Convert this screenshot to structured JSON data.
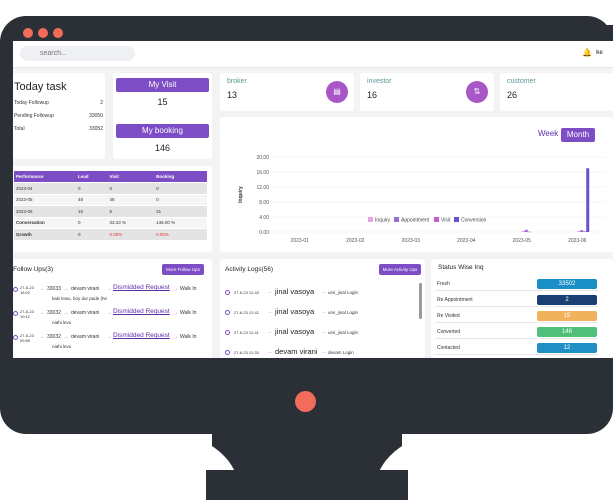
{
  "search": {
    "placeholder": "search..."
  },
  "header": {
    "user": "ke"
  },
  "today_task": {
    "title": "Today task",
    "rows": [
      {
        "label": "Today Followup",
        "value": "2"
      },
      {
        "label": "Pending Followup",
        "value": "33050"
      },
      {
        "label": "Total",
        "value": "33052"
      }
    ]
  },
  "my_visit": {
    "label": "My Visit",
    "value": "15"
  },
  "my_booking": {
    "label": "My booking",
    "value": "146"
  },
  "stats": [
    {
      "label": "broker",
      "value": "13",
      "icon": "chart-icon"
    },
    {
      "label": "investor",
      "value": "16",
      "icon": "arrows-icon"
    },
    {
      "label": "customer",
      "value": "26",
      "icon": "user-icon"
    }
  ],
  "performance": {
    "headers": [
      "Performance",
      "Lead",
      "Visit",
      "Booking"
    ],
    "rows": [
      [
        "2023-04",
        "0",
        "0",
        "0"
      ],
      [
        "2023-05",
        "48",
        "48",
        "0"
      ],
      [
        "2023-06",
        "15",
        "5",
        "31"
      ],
      [
        "Conversation",
        "0",
        "33.33 %",
        "146.00 %"
      ],
      [
        "Growth",
        "0",
        "0.00%",
        "0.00%"
      ]
    ]
  },
  "chart_toggle": {
    "week": "Week",
    "month": "Month"
  },
  "chart_data": {
    "type": "bar",
    "categories": [
      "2023-01",
      "2023-02",
      "2023-03",
      "2023-04",
      "2023-05",
      "2023-06"
    ],
    "series": [
      {
        "name": "Inquiry",
        "color": "#e3a2e3",
        "values": [
          0,
          0,
          0,
          0,
          0.3,
          0.3
        ]
      },
      {
        "name": "Appointment",
        "color": "#9b6bd6",
        "values": [
          0,
          0,
          0,
          0,
          0.6,
          0.5
        ]
      },
      {
        "name": "Visit",
        "color": "#c95ad0",
        "values": [
          0,
          0,
          0,
          0,
          0.1,
          0.2
        ]
      },
      {
        "name": "Conversion",
        "color": "#6a4fd0",
        "values": [
          0,
          0,
          0,
          0,
          0,
          17
        ]
      }
    ],
    "ylabel": "Inquiry",
    "yticks": [
      "20.00",
      "16.00",
      "12.00",
      "8.00",
      "4.00",
      "0.00"
    ],
    "ylim": [
      0,
      20
    ],
    "legend": "bottom"
  },
  "follow_ups": {
    "title": "Follow Ups(3)",
    "button": "More Follow Ups",
    "items": [
      {
        "date": "27-6-23",
        "time": "16:02",
        "id": "33033",
        "name": "devam virani",
        "status": "Dismidded Request",
        "type": "Walk In",
        "note": "kaki lewu, boy dur pade (he"
      },
      {
        "date": "27-6-23",
        "time": "10:12",
        "id": "33032",
        "name": "devam virani",
        "status": "Dismidded Request",
        "type": "Walk In",
        "note": "nathi levu"
      },
      {
        "date": "27-6-23",
        "time": "09:55",
        "id": "33032",
        "name": "devam virani",
        "status": "Dismidded Request",
        "type": "Walk In",
        "note": "nathi levu"
      }
    ]
  },
  "activity": {
    "title": "Activity Logs(56)",
    "button": "More Activity Ups",
    "items": [
      {
        "time": "27-6-23 12:43",
        "name": "jinal vasoya",
        "action": "urvi_jinal Login"
      },
      {
        "time": "27-6-23 12:42",
        "name": "jinal vasoya",
        "action": "urvi_jinal Login"
      },
      {
        "time": "27-6-23 12:41",
        "name": "jinal vasoya",
        "action": "urvi_jinal Login"
      },
      {
        "time": "27-6-23 12:33",
        "name": "devam virani",
        "action": "devam Login"
      }
    ]
  },
  "status_wise": {
    "title": "Status Wise Inq",
    "rows": [
      {
        "label": "Fresh",
        "value": "33502",
        "color": "#1a8fc7"
      },
      {
        "label": "Re Appointment",
        "value": "2",
        "color": "#1c3f73"
      },
      {
        "label": "Re Visited",
        "value": "15",
        "color": "#f0b25a"
      },
      {
        "label": "Converted",
        "value": "146",
        "color": "#4fbf7a"
      },
      {
        "label": "Contacted",
        "value": "12",
        "color": "#1f8fc4"
      }
    ]
  }
}
